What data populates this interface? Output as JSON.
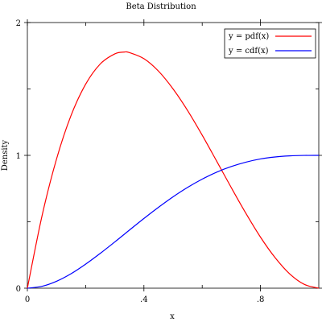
{
  "chart_data": {
    "type": "line",
    "title": "Beta Distribution",
    "xlabel": "x",
    "ylabel": "Density",
    "xlim": [
      0,
      1
    ],
    "ylim": [
      0,
      2
    ],
    "x_ticks": [
      {
        "value": 0,
        "label": "0"
      },
      {
        "value": 0.4,
        "label": ".4"
      },
      {
        "value": 0.8,
        "label": ".8"
      }
    ],
    "y_ticks": [
      {
        "value": 0,
        "label": "0"
      },
      {
        "value": 1,
        "label": "1"
      },
      {
        "value": 2,
        "label": "2"
      }
    ],
    "grid": false,
    "legend_position": "top-right",
    "series": [
      {
        "name": "y = pdf(x)",
        "color": "#ff0000",
        "x": [
          0,
          0.05,
          0.1,
          0.15,
          0.2,
          0.25,
          0.3,
          0.333,
          0.35,
          0.4,
          0.45,
          0.5,
          0.55,
          0.6,
          0.65,
          0.7,
          0.75,
          0.8,
          0.85,
          0.9,
          0.95,
          1
        ],
        "y": [
          0,
          0.542,
          0.972,
          1.301,
          1.536,
          1.688,
          1.764,
          1.778,
          1.774,
          1.728,
          1.634,
          1.5,
          1.337,
          1.152,
          0.955,
          0.756,
          0.563,
          0.384,
          0.23,
          0.108,
          0.029,
          0
        ]
      },
      {
        "name": "y = cdf(x)",
        "color": "#0000ff",
        "x": [
          0,
          0.05,
          0.1,
          0.15,
          0.2,
          0.25,
          0.3,
          0.35,
          0.4,
          0.45,
          0.5,
          0.55,
          0.6,
          0.65,
          0.7,
          0.75,
          0.8,
          0.85,
          0.9,
          0.95,
          1
        ],
        "y": [
          0,
          0.014,
          0.052,
          0.109,
          0.181,
          0.262,
          0.348,
          0.437,
          0.525,
          0.609,
          0.688,
          0.759,
          0.821,
          0.874,
          0.916,
          0.949,
          0.973,
          0.988,
          0.996,
          0.9995,
          1
        ]
      }
    ]
  }
}
